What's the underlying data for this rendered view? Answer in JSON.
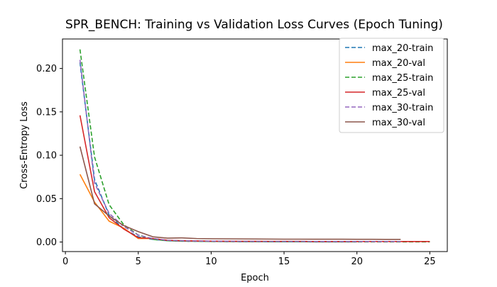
{
  "chart_data": {
    "type": "line",
    "title": "SPR_BENCH: Training vs Validation Loss Curves (Epoch Tuning)",
    "xlabel": "Epoch",
    "ylabel": "Cross-Entropy Loss",
    "xlim": [
      -0.2,
      26.2
    ],
    "ylim": [
      -0.011,
      0.234
    ],
    "xticks": [
      0,
      5,
      10,
      15,
      20,
      25
    ],
    "yticks": [
      0.0,
      0.05,
      0.1,
      0.15,
      0.2
    ],
    "xtick_labels": [
      "0",
      "5",
      "10",
      "15",
      "20",
      "25"
    ],
    "ytick_labels": [
      "0.00",
      "0.05",
      "0.10",
      "0.15",
      "0.20"
    ],
    "grid": false,
    "legend_position": "upper right",
    "series": [
      {
        "name": "max_20-train",
        "color": "#1f77b4",
        "style": "dashed",
        "x": [
          1,
          2,
          3,
          4,
          5,
          6,
          7,
          8,
          9,
          10,
          11,
          12,
          13,
          14,
          15,
          16,
          17,
          18,
          19,
          20
        ],
        "y": [
          0.207,
          0.072,
          0.031,
          0.015,
          0.006,
          0.003,
          0.0015,
          0.001,
          0.0008,
          0.0006,
          0.0005,
          0.0004,
          0.0004,
          0.0003,
          0.0003,
          0.0003,
          0.0002,
          0.0002,
          0.0002,
          0.0002
        ]
      },
      {
        "name": "max_20-val",
        "color": "#ff7f0e",
        "style": "solid",
        "x": [
          1,
          2,
          3,
          4,
          5,
          6,
          7,
          8,
          9,
          10,
          11,
          12,
          13,
          14,
          15,
          16,
          17,
          18,
          19,
          20
        ],
        "y": [
          0.078,
          0.046,
          0.024,
          0.016,
          0.004,
          0.004,
          0.002,
          0.0015,
          0.0012,
          0.001,
          0.0009,
          0.0008,
          0.0008,
          0.0007,
          0.0007,
          0.0007,
          0.0006,
          0.0006,
          0.0006,
          0.0006
        ]
      },
      {
        "name": "max_25-train",
        "color": "#2ca02c",
        "style": "dashed",
        "x": [
          1,
          2,
          3,
          4,
          5,
          6,
          7,
          8,
          9,
          10,
          11,
          12,
          13,
          14,
          15,
          16,
          17,
          18,
          19,
          20,
          21,
          22,
          23,
          24,
          25
        ],
        "y": [
          0.222,
          0.098,
          0.043,
          0.02,
          0.008,
          0.003,
          0.0015,
          0.001,
          0.0008,
          0.0006,
          0.0005,
          0.0004,
          0.0004,
          0.0003,
          0.0003,
          0.0003,
          0.0002,
          0.0002,
          0.0002,
          0.0002,
          0.0002,
          0.0002,
          0.0002,
          0.0002,
          0.0002
        ]
      },
      {
        "name": "max_25-val",
        "color": "#d62728",
        "style": "solid",
        "x": [
          1,
          2,
          3,
          4,
          5,
          6,
          7,
          8,
          9,
          10,
          11,
          12,
          13,
          14,
          15,
          16,
          17,
          18,
          19,
          20,
          21,
          22,
          23,
          24,
          25
        ],
        "y": [
          0.146,
          0.058,
          0.028,
          0.015,
          0.005,
          0.004,
          0.002,
          0.0015,
          0.0012,
          0.001,
          0.0009,
          0.0008,
          0.0008,
          0.0007,
          0.0007,
          0.0007,
          0.0006,
          0.0006,
          0.0006,
          0.0006,
          0.0006,
          0.0006,
          0.0006,
          0.0006,
          0.0006
        ]
      },
      {
        "name": "max_30-train",
        "color": "#9467bd",
        "style": "dashed",
        "x": [
          1,
          2,
          3,
          4,
          5,
          6,
          7,
          8,
          9,
          10,
          11,
          12,
          13,
          14,
          15,
          16,
          17,
          18,
          19,
          20,
          21,
          22,
          23
        ],
        "y": [
          0.21,
          0.068,
          0.033,
          0.018,
          0.008,
          0.004,
          0.002,
          0.0015,
          0.0012,
          0.001,
          0.0009,
          0.0008,
          0.0008,
          0.0007,
          0.0007,
          0.0007,
          0.0006,
          0.0006,
          0.0006,
          0.0006,
          0.0006,
          0.0006,
          0.0006
        ]
      },
      {
        "name": "max_30-val",
        "color": "#8c564b",
        "style": "solid",
        "x": [
          1,
          2,
          3,
          4,
          5,
          6,
          7,
          8,
          9,
          10,
          11,
          12,
          13,
          14,
          15,
          16,
          17,
          18,
          19,
          20,
          21,
          22,
          23
        ],
        "y": [
          0.11,
          0.044,
          0.03,
          0.019,
          0.012,
          0.006,
          0.0045,
          0.0048,
          0.004,
          0.0038,
          0.0037,
          0.0036,
          0.0035,
          0.0034,
          0.0033,
          0.0033,
          0.0032,
          0.0032,
          0.0032,
          0.0031,
          0.0031,
          0.003,
          0.003
        ]
      }
    ]
  }
}
